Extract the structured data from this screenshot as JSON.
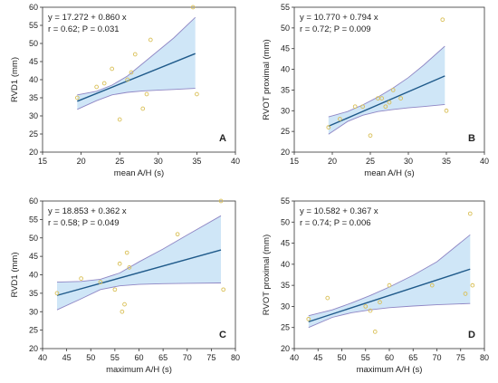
{
  "colors": {
    "band_fill": "#cfe6f7",
    "band_edge": "#8f86c4",
    "line": "#1f5a8a",
    "points": "#d9bf55",
    "axis": "#333333"
  },
  "chart_data": [
    {
      "type": "scatter",
      "panel_label": "A",
      "xlabel": "mean A/H (s)",
      "ylabel": "RVD1 (mm)",
      "xlim": [
        15,
        40
      ],
      "ylim": [
        20,
        60
      ],
      "xticks": [
        "15",
        "20",
        "25",
        "30",
        "35",
        "40"
      ],
      "yticks": [
        "20",
        "25",
        "30",
        "35",
        "40",
        "45",
        "50",
        "55",
        "60"
      ],
      "equation": "y = 17.272  +  0.860  x",
      "stats": "r = 0.62; P = 0.031",
      "fit": {
        "intercept": 17.272,
        "slope": 0.86,
        "x_range": [
          19.5,
          34.8
        ]
      },
      "ci_upper": [
        [
          19.5,
          35.8
        ],
        [
          22,
          36.8
        ],
        [
          24,
          38.5
        ],
        [
          26,
          41
        ],
        [
          28,
          44.5
        ],
        [
          30,
          48
        ],
        [
          32,
          51.5
        ],
        [
          34.8,
          57.2
        ]
      ],
      "ci_lower": [
        [
          19.5,
          31.8
        ],
        [
          22,
          34.2
        ],
        [
          24,
          35.8
        ],
        [
          26,
          36.5
        ],
        [
          28,
          36.9
        ],
        [
          30,
          37.1
        ],
        [
          32,
          37.3
        ],
        [
          34.8,
          37.6
        ]
      ],
      "points": [
        [
          19.5,
          35
        ],
        [
          22,
          38
        ],
        [
          23,
          39
        ],
        [
          24,
          43
        ],
        [
          25,
          29
        ],
        [
          26,
          40
        ],
        [
          26.5,
          42
        ],
        [
          27,
          47
        ],
        [
          28,
          32
        ],
        [
          28.5,
          36
        ],
        [
          29,
          51
        ],
        [
          34.5,
          60
        ],
        [
          35,
          36
        ]
      ]
    },
    {
      "type": "scatter",
      "panel_label": "B",
      "xlabel": "mean A/H (s)",
      "ylabel": "RVOT proximal (mm)",
      "xlim": [
        15,
        40
      ],
      "ylim": [
        20,
        55
      ],
      "xticks": [
        "15",
        "20",
        "25",
        "30",
        "35",
        "40"
      ],
      "yticks": [
        "20",
        "25",
        "30",
        "35",
        "40",
        "45",
        "50",
        "55"
      ],
      "equation": "y = 10.770  +  0.794  x",
      "stats": "r = 0.72; P = 0.009",
      "fit": {
        "intercept": 10.77,
        "slope": 0.794,
        "x_range": [
          19.5,
          34.8
        ]
      },
      "ci_upper": [
        [
          19.5,
          28.5
        ],
        [
          22,
          29.8
        ],
        [
          24,
          31.4
        ],
        [
          26,
          33.3
        ],
        [
          28,
          35.5
        ],
        [
          30,
          38
        ],
        [
          32,
          41
        ],
        [
          34.8,
          45.6
        ]
      ],
      "ci_lower": [
        [
          19.5,
          24.3
        ],
        [
          22,
          27.4
        ],
        [
          24,
          28.9
        ],
        [
          26,
          29.8
        ],
        [
          28,
          30.3
        ],
        [
          30,
          30.7
        ],
        [
          32,
          31
        ],
        [
          34.8,
          31.5
        ]
      ],
      "points": [
        [
          19.5,
          26
        ],
        [
          21,
          28
        ],
        [
          23,
          31
        ],
        [
          24,
          31
        ],
        [
          25,
          24
        ],
        [
          26,
          33
        ],
        [
          26.5,
          33
        ],
        [
          27,
          31
        ],
        [
          27.5,
          32
        ],
        [
          28,
          35
        ],
        [
          29,
          33
        ],
        [
          34.5,
          52
        ],
        [
          35,
          30
        ]
      ]
    },
    {
      "type": "scatter",
      "panel_label": "C",
      "xlabel": "maximum A/H (s)",
      "ylabel": "RVD1 (mm)",
      "xlim": [
        40,
        80
      ],
      "ylim": [
        20,
        60
      ],
      "xticks": [
        "40",
        "45",
        "50",
        "55",
        "60",
        "65",
        "70",
        "75",
        "80"
      ],
      "yticks": [
        "20",
        "25",
        "30",
        "35",
        "40",
        "45",
        "50",
        "55",
        "60"
      ],
      "equation": "y = 18.853  +  0.362  x",
      "stats": "r = 0.58; P = 0.049",
      "fit": {
        "intercept": 18.853,
        "slope": 0.362,
        "x_range": [
          43,
          77
        ]
      },
      "ci_upper": [
        [
          43,
          38
        ],
        [
          48,
          38.2
        ],
        [
          52,
          38.8
        ],
        [
          56,
          40.5
        ],
        [
          60,
          43.5
        ],
        [
          65,
          47
        ],
        [
          70,
          50.8
        ],
        [
          77,
          56
        ]
      ],
      "ci_lower": [
        [
          43,
          30.5
        ],
        [
          48,
          33.5
        ],
        [
          52,
          36
        ],
        [
          56,
          37
        ],
        [
          60,
          37.4
        ],
        [
          65,
          37.6
        ],
        [
          70,
          37.7
        ],
        [
          77,
          37.8
        ]
      ],
      "points": [
        [
          43,
          35
        ],
        [
          48,
          39
        ],
        [
          52,
          38
        ],
        [
          55,
          36
        ],
        [
          56,
          43
        ],
        [
          56.5,
          30
        ],
        [
          57,
          32
        ],
        [
          57.5,
          46
        ],
        [
          58,
          42
        ],
        [
          68,
          51
        ],
        [
          77,
          60
        ],
        [
          77.5,
          36
        ]
      ]
    },
    {
      "type": "scatter",
      "panel_label": "D",
      "xlabel": "maximum A/H (s)",
      "ylabel": "RVOT proximal (mm)",
      "xlim": [
        40,
        80
      ],
      "ylim": [
        20,
        55
      ],
      "xticks": [
        "40",
        "45",
        "50",
        "55",
        "60",
        "65",
        "70",
        "75",
        "80"
      ],
      "yticks": [
        "20",
        "25",
        "30",
        "35",
        "40",
        "45",
        "50",
        "55"
      ],
      "equation": "y = 10.582  +  0.367  x",
      "stats": "r = 0.74; P = 0.006",
      "fit": {
        "intercept": 10.582,
        "slope": 0.367,
        "x_range": [
          43,
          77
        ]
      },
      "ci_upper": [
        [
          43,
          27.8
        ],
        [
          48,
          29.2
        ],
        [
          52,
          30.8
        ],
        [
          56,
          32.6
        ],
        [
          60,
          34.6
        ],
        [
          65,
          37.4
        ],
        [
          70,
          40.6
        ],
        [
          77,
          47
        ]
      ],
      "ci_lower": [
        [
          43,
          25
        ],
        [
          48,
          27.4
        ],
        [
          52,
          28.5
        ],
        [
          56,
          29.2
        ],
        [
          60,
          29.7
        ],
        [
          65,
          30.1
        ],
        [
          70,
          30.4
        ],
        [
          77,
          30.7
        ]
      ],
      "points": [
        [
          43,
          27
        ],
        [
          47,
          32
        ],
        [
          55,
          30
        ],
        [
          56,
          29
        ],
        [
          57,
          24
        ],
        [
          58,
          31
        ],
        [
          60,
          35
        ],
        [
          69,
          35
        ],
        [
          76,
          33
        ],
        [
          77,
          52
        ],
        [
          77.5,
          35
        ]
      ]
    }
  ]
}
